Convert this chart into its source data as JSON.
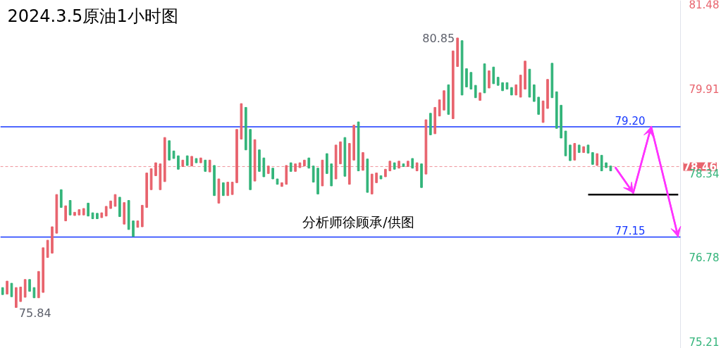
{
  "chart_data": {
    "type": "candlestick",
    "title": "2024.3.5原油1小时图",
    "categories": [
      null,
      null,
      null,
      null,
      null,
      null,
      null,
      null,
      null,
      null,
      null,
      null,
      null,
      null,
      null,
      null,
      null,
      null,
      null,
      null,
      null,
      null,
      null,
      null,
      null,
      null,
      null,
      null,
      null,
      null,
      null,
      null,
      null,
      null,
      null,
      null,
      null,
      null,
      null,
      null,
      null,
      null,
      null,
      null,
      null,
      null,
      null,
      null,
      null,
      null,
      null,
      null,
      null,
      null,
      null,
      null,
      null,
      null,
      null,
      null,
      null,
      null,
      null,
      null,
      null,
      null,
      null,
      null,
      null,
      null,
      null,
      null,
      null,
      null,
      null,
      null,
      null,
      null,
      null,
      null,
      null,
      null,
      null,
      null,
      null,
      null,
      null,
      null,
      null,
      null,
      null,
      null,
      null,
      null,
      null,
      null,
      null,
      null,
      null,
      null,
      null,
      null,
      null,
      null,
      null,
      null,
      null,
      null,
      null,
      null,
      null,
      null,
      null,
      null,
      null,
      null,
      null,
      null,
      null,
      null,
      null,
      null,
      null,
      null,
      null,
      null,
      null,
      null,
      null,
      null,
      null,
      null,
      null,
      null,
      null,
      null,
      null,
      null,
      null,
      null,
      null,
      null,
      null,
      null,
      null,
      null,
      null,
      null,
      null,
      null,
      null
    ],
    "ohlc": [
      [
        76.21,
        76.21,
        76.08,
        76.08
      ],
      [
        76.09,
        76.33,
        76.09,
        76.33
      ],
      [
        76.29,
        76.29,
        76.04,
        76.04
      ],
      [
        75.84,
        76.21,
        75.84,
        76.21
      ],
      [
        75.95,
        76.22,
        75.95,
        76.22
      ],
      [
        76.03,
        76.36,
        76.03,
        76.36
      ],
      [
        76.36,
        76.36,
        76.14,
        76.14
      ],
      [
        76.21,
        76.21,
        76.02,
        76.02
      ],
      [
        76.02,
        76.51,
        76.02,
        76.51
      ],
      [
        76.12,
        76.95,
        76.12,
        76.95
      ],
      [
        76.77,
        77.09,
        76.77,
        77.09
      ],
      [
        76.85,
        77.34,
        76.85,
        77.34
      ],
      [
        77.22,
        77.94,
        77.22,
        77.94
      ],
      [
        78.03,
        78.03,
        77.7,
        77.7
      ],
      [
        77.45,
        77.73,
        77.45,
        77.73
      ],
      [
        77.83,
        77.83,
        77.56,
        77.56
      ],
      [
        77.55,
        77.61,
        77.55,
        77.61
      ],
      [
        77.56,
        77.66,
        77.56,
        77.66
      ],
      [
        77.56,
        77.68,
        77.56,
        77.68
      ],
      [
        77.78,
        77.78,
        77.54,
        77.54
      ],
      [
        77.6,
        77.6,
        77.49,
        77.49
      ],
      [
        77.59,
        77.59,
        77.49,
        77.49
      ],
      [
        77.51,
        77.6,
        77.51,
        77.6
      ],
      [
        77.54,
        77.72,
        77.54,
        77.72
      ],
      [
        77.68,
        77.82,
        77.68,
        77.82
      ],
      [
        77.72,
        77.94,
        77.72,
        77.94
      ],
      [
        77.89,
        77.89,
        77.53,
        77.53
      ],
      [
        77.39,
        77.79,
        77.39,
        77.79
      ],
      [
        77.83,
        77.83,
        77.29,
        77.29
      ],
      [
        77.45,
        77.45,
        77.16,
        77.16
      ],
      [
        77.33,
        77.45,
        77.33,
        77.45
      ],
      [
        77.34,
        77.74,
        77.34,
        77.74
      ],
      [
        77.7,
        78.34,
        77.7,
        78.34
      ],
      [
        78.03,
        78.42,
        78.03,
        78.42
      ],
      [
        78.29,
        78.53,
        78.29,
        78.53
      ],
      [
        78.03,
        78.51,
        78.03,
        78.51
      ],
      [
        78.18,
        79.0,
        78.18,
        79.0
      ],
      [
        78.94,
        78.94,
        78.58,
        78.58
      ],
      [
        78.75,
        78.75,
        78.61,
        78.61
      ],
      [
        78.66,
        78.66,
        78.41,
        78.41
      ],
      [
        78.46,
        78.58,
        78.46,
        78.58
      ],
      [
        78.66,
        78.66,
        78.48,
        78.48
      ],
      [
        78.47,
        78.65,
        78.47,
        78.65
      ],
      [
        78.61,
        78.61,
        78.53,
        78.53
      ],
      [
        78.53,
        78.62,
        78.53,
        78.62
      ],
      [
        78.58,
        78.58,
        78.37,
        78.37
      ],
      [
        78.36,
        78.58,
        78.36,
        78.58
      ],
      [
        78.48,
        78.48,
        77.92,
        77.92
      ],
      [
        77.78,
        78.23,
        77.78,
        78.23
      ],
      [
        78.16,
        78.16,
        77.92,
        77.92
      ],
      [
        77.92,
        78.17,
        77.92,
        78.17
      ],
      [
        77.94,
        78.17,
        77.94,
        78.17
      ],
      [
        78.16,
        79.15,
        78.16,
        79.15
      ],
      [
        78.97,
        79.63,
        78.97,
        79.63
      ],
      [
        79.56,
        79.56,
        78.77,
        78.77
      ],
      [
        79.15,
        79.15,
        78.03,
        78.03
      ],
      [
        78.19,
        78.96,
        78.19,
        78.96
      ],
      [
        78.77,
        78.77,
        78.37,
        78.37
      ],
      [
        78.62,
        78.62,
        78.27,
        78.27
      ],
      [
        78.33,
        78.47,
        78.33,
        78.47
      ],
      [
        78.43,
        78.43,
        78.23,
        78.23
      ],
      [
        78.23,
        78.23,
        78.13,
        78.13
      ],
      [
        78.09,
        78.16,
        78.09,
        78.16
      ],
      [
        78.13,
        78.48,
        78.13,
        78.48
      ],
      [
        78.53,
        78.53,
        78.37,
        78.37
      ],
      [
        78.37,
        78.51,
        78.37,
        78.51
      ],
      [
        78.44,
        78.53,
        78.44,
        78.53
      ],
      [
        78.47,
        78.58,
        78.47,
        78.58
      ],
      [
        78.62,
        78.62,
        78.43,
        78.43
      ],
      [
        78.47,
        78.47,
        78.17,
        78.17
      ],
      [
        78.43,
        78.43,
        77.95,
        77.95
      ],
      [
        78.1,
        78.58,
        78.1,
        78.58
      ],
      [
        78.7,
        78.7,
        78.33,
        78.33
      ],
      [
        78.51,
        78.51,
        78.1,
        78.1
      ],
      [
        78.23,
        78.86,
        78.23,
        78.86
      ],
      [
        78.51,
        78.92,
        78.51,
        78.92
      ],
      [
        79.0,
        79.0,
        78.28,
        78.28
      ],
      [
        78.13,
        78.89,
        78.13,
        78.89
      ],
      [
        78.58,
        79.23,
        78.58,
        79.23
      ],
      [
        79.29,
        79.29,
        78.38,
        78.38
      ],
      [
        78.39,
        78.72,
        78.39,
        78.72
      ],
      [
        78.6,
        78.6,
        77.98,
        77.98
      ],
      [
        77.95,
        78.32,
        77.95,
        78.32
      ],
      [
        78.16,
        78.34,
        78.16,
        78.34
      ],
      [
        78.29,
        78.29,
        78.23,
        78.23
      ],
      [
        78.27,
        78.41,
        78.27,
        78.41
      ],
      [
        78.38,
        78.56,
        78.38,
        78.56
      ],
      [
        78.53,
        78.53,
        78.41,
        78.41
      ],
      [
        78.43,
        78.56,
        78.43,
        78.56
      ],
      [
        78.51,
        78.51,
        78.46,
        78.46
      ],
      [
        78.46,
        78.56,
        78.46,
        78.56
      ],
      [
        78.61,
        78.61,
        78.43,
        78.43
      ],
      [
        78.38,
        78.53,
        78.38,
        78.53
      ],
      [
        78.51,
        78.51,
        78.07,
        78.07
      ],
      [
        78.32,
        79.33,
        78.32,
        79.33
      ],
      [
        79.45,
        79.45,
        79.05,
        79.05
      ],
      [
        79.07,
        79.56,
        79.07,
        79.56
      ],
      [
        79.4,
        79.7,
        79.4,
        79.7
      ],
      [
        79.51,
        79.87,
        79.51,
        79.87
      ],
      [
        79.98,
        79.98,
        79.43,
        79.43
      ],
      [
        79.35,
        80.61,
        79.35,
        80.61
      ],
      [
        80.32,
        80.85,
        80.32,
        80.85
      ],
      [
        80.8,
        80.8,
        79.79,
        79.79
      ],
      [
        80.28,
        80.28,
        79.94,
        79.94
      ],
      [
        80.21,
        80.21,
        79.9,
        79.9
      ],
      [
        79.97,
        79.97,
        79.74,
        79.74
      ],
      [
        79.69,
        79.83,
        79.69,
        79.83
      ],
      [
        80.37,
        80.37,
        79.83,
        79.83
      ],
      [
        79.92,
        80.24,
        79.92,
        80.24
      ],
      [
        80.31,
        80.31,
        80.0,
        80.0
      ],
      [
        80.12,
        80.12,
        79.97,
        79.97
      ],
      [
        80.02,
        80.02,
        79.87,
        79.87
      ],
      [
        80.02,
        80.02,
        79.9,
        79.9
      ],
      [
        79.93,
        79.93,
        79.79,
        79.79
      ],
      [
        79.79,
        79.98,
        79.79,
        79.98
      ],
      [
        79.75,
        80.16,
        79.75,
        80.16
      ],
      [
        79.9,
        80.42,
        79.9,
        80.42
      ],
      [
        80.27,
        80.27,
        79.75,
        79.75
      ],
      [
        79.98,
        79.98,
        79.67,
        79.67
      ],
      [
        79.75,
        79.75,
        79.43,
        79.43
      ],
      [
        79.28,
        79.68,
        79.28,
        79.68
      ],
      [
        79.54,
        80.08,
        79.54,
        80.08
      ],
      [
        80.38,
        80.38,
        79.74,
        79.74
      ],
      [
        79.85,
        79.85,
        79.17,
        79.17
      ],
      [
        79.6,
        79.6,
        78.99,
        78.99
      ],
      [
        79.12,
        79.12,
        78.66,
        78.66
      ],
      [
        78.86,
        78.86,
        78.57,
        78.57
      ],
      [
        78.58,
        78.89,
        78.58,
        78.89
      ],
      [
        78.86,
        78.86,
        78.72,
        78.72
      ],
      [
        78.72,
        78.83,
        78.72,
        78.83
      ],
      [
        78.86,
        78.86,
        78.71,
        78.71
      ],
      [
        78.72,
        78.72,
        78.5,
        78.5
      ],
      [
        78.48,
        78.7,
        78.48,
        78.7
      ],
      [
        78.67,
        78.67,
        78.38,
        78.38
      ],
      [
        78.53,
        78.53,
        78.44,
        78.44
      ],
      [
        78.47,
        78.47,
        78.38,
        78.38
      ],
      null,
      null,
      null,
      null,
      null,
      null,
      null,
      null,
      null,
      null,
      null,
      null,
      null,
      null,
      null
    ],
    "colors": [
      "#33b47a",
      "#e8636d",
      "#33b47a",
      "#e8636d",
      "#e8636d",
      "#e8636d",
      "#33b47a",
      "#33b47a",
      "#e8636d",
      "#e8636d",
      "#e8636d",
      "#e8636d",
      "#e8636d",
      "#33b47a",
      "#e8636d",
      "#33b47a",
      "#e8636d",
      "#e8636d",
      "#e8636d",
      "#33b47a",
      "#33b47a",
      "#33b47a",
      "#e8636d",
      "#e8636d",
      "#e8636d",
      "#e8636d",
      "#33b47a",
      "#e8636d",
      "#33b47a",
      "#33b47a",
      "#e8636d",
      "#e8636d",
      "#e8636d",
      "#e8636d",
      "#e8636d",
      "#e8636d",
      "#e8636d",
      "#33b47a",
      "#33b47a",
      "#33b47a",
      "#e8636d",
      "#33b47a",
      "#e8636d",
      "#33b47a",
      "#e8636d",
      "#33b47a",
      "#e8636d",
      "#33b47a",
      "#e8636d",
      "#33b47a",
      "#e8636d",
      "#e8636d",
      "#e8636d",
      "#e8636d",
      "#33b47a",
      "#33b47a",
      "#e8636d",
      "#33b47a",
      "#33b47a",
      "#e8636d",
      "#33b47a",
      "#33b47a",
      "#e8636d",
      "#e8636d",
      "#33b47a",
      "#e8636d",
      "#e8636d",
      "#e8636d",
      "#33b47a",
      "#33b47a",
      "#33b47a",
      "#e8636d",
      "#33b47a",
      "#33b47a",
      "#e8636d",
      "#e8636d",
      "#33b47a",
      "#e8636d",
      "#e8636d",
      "#33b47a",
      "#e8636d",
      "#33b47a",
      "#e8636d",
      "#e8636d",
      "#33b47a",
      "#e8636d",
      "#e8636d",
      "#33b47a",
      "#e8636d",
      "#33b47a",
      "#e8636d",
      "#33b47a",
      "#e8636d",
      "#33b47a",
      "#e8636d",
      "#33b47a",
      "#e8636d",
      "#e8636d",
      "#e8636d",
      "#33b47a",
      "#e8636d",
      "#e8636d",
      "#33b47a",
      "#33b47a",
      "#33b47a",
      "#33b47a",
      "#e8636d",
      "#33b47a",
      "#e8636d",
      "#33b47a",
      "#33b47a",
      "#33b47a",
      "#33b47a",
      "#33b47a",
      "#e8636d",
      "#e8636d",
      "#e8636d",
      "#33b47a",
      "#33b47a",
      "#33b47a",
      "#e8636d",
      "#e8636d",
      "#33b47a",
      "#33b47a",
      "#33b47a",
      "#33b47a",
      "#33b47a",
      "#e8636d",
      "#33b47a",
      "#e8636d",
      "#33b47a",
      "#33b47a",
      "#e8636d",
      "#33b47a",
      "#33b47a",
      "#33b47a",
      null,
      null,
      null,
      null,
      null,
      null,
      null,
      null,
      null,
      null,
      null,
      null,
      null,
      null,
      null
    ],
    "ylim": [
      75.08,
      81.55
    ],
    "yticks": [
      81.48,
      79.91,
      78.34,
      76.78,
      75.21
    ],
    "grid": false,
    "series": [
      {
        "type": "line",
        "values": [
          null,
          null,
          null,
          null,
          null,
          null,
          null,
          null,
          null,
          null,
          null,
          null,
          null,
          null,
          null,
          null,
          null,
          null,
          null,
          null,
          null,
          null,
          null,
          null,
          null,
          null,
          null,
          null,
          null,
          null,
          null,
          null,
          null,
          null,
          null,
          null,
          null,
          null,
          null,
          null,
          null,
          null,
          null,
          null,
          null,
          null,
          null,
          null,
          null,
          null,
          null,
          null,
          null,
          null,
          null,
          null,
          null,
          null,
          null,
          null,
          null,
          null,
          null,
          null,
          null,
          null,
          null,
          null,
          null,
          null,
          null,
          null,
          null,
          null,
          null,
          null,
          null,
          null,
          null,
          null,
          null,
          null,
          null,
          null,
          null,
          null,
          null,
          null,
          null,
          null,
          null,
          null,
          null,
          null,
          null,
          null,
          null,
          null,
          null,
          null,
          null,
          null,
          null,
          null,
          null,
          null,
          null,
          null,
          null,
          null,
          null,
          null,
          null,
          null,
          null,
          null,
          null,
          null,
          null,
          null,
          null,
          null,
          null,
          null,
          null,
          null,
          null,
          null,
          null,
          null,
          77.94,
          77.94,
          77.94,
          77.94,
          77.94,
          77.94,
          77.94,
          77.94,
          77.94,
          77.94,
          77.94,
          77.94,
          77.94,
          77.94,
          77.94,
          77.94,
          77.94,
          77.94,
          77.94,
          77.94,
          77.94
        ],
        "color": "#000000",
        "marker": "none"
      },
      {
        "type": "line",
        "values": [
          null,
          null,
          null,
          null,
          null,
          null,
          null,
          null,
          null,
          null,
          null,
          null,
          null,
          null,
          null,
          null,
          null,
          null,
          null,
          null,
          null,
          null,
          null,
          null,
          null,
          null,
          null,
          null,
          null,
          null,
          null,
          null,
          null,
          null,
          null,
          null,
          null,
          null,
          null,
          null,
          null,
          null,
          null,
          null,
          null,
          null,
          null,
          null,
          null,
          null,
          null,
          null,
          null,
          null,
          null,
          null,
          null,
          null,
          null,
          null,
          null,
          null,
          null,
          null,
          null,
          null,
          null,
          null,
          null,
          null,
          null,
          null,
          null,
          null,
          null,
          null,
          null,
          null,
          null,
          null,
          null,
          null,
          null,
          null,
          null,
          null,
          null,
          null,
          null,
          null,
          null,
          null,
          null,
          null,
          null,
          null,
          null,
          null,
          null,
          null,
          null,
          null,
          null,
          null,
          null,
          null,
          null,
          null,
          null,
          null,
          null,
          null,
          null,
          null,
          null,
          null,
          null,
          null,
          null,
          null,
          null,
          null,
          null,
          null,
          null,
          null,
          null,
          null,
          null,
          null,
          null,
          null,
          null,
          null,
          null,
          null,
          78.45,
          null,
          null,
          null,
          77.97,
          null,
          null,
          null,
          79.2,
          null,
          null,
          null,
          null,
          null,
          77.15
        ],
        "color": "#ff33ff",
        "marker": "none"
      }
    ],
    "ref_lines": [
      {
        "axis": "y",
        "value": 79.2,
        "label": "79.20",
        "color": "#1436ff",
        "line_style": "solid"
      },
      {
        "axis": "y",
        "value": 77.15,
        "label": "77.15",
        "color": "#1436ff",
        "line_style": "solid"
      },
      {
        "axis": "y",
        "value": 78.46,
        "label": "78.46",
        "color": "#e8636d",
        "line_style": "dashed"
      }
    ],
    "annotations": [
      "80.85",
      "75.84",
      "分析师徐顾承/供图"
    ]
  }
}
